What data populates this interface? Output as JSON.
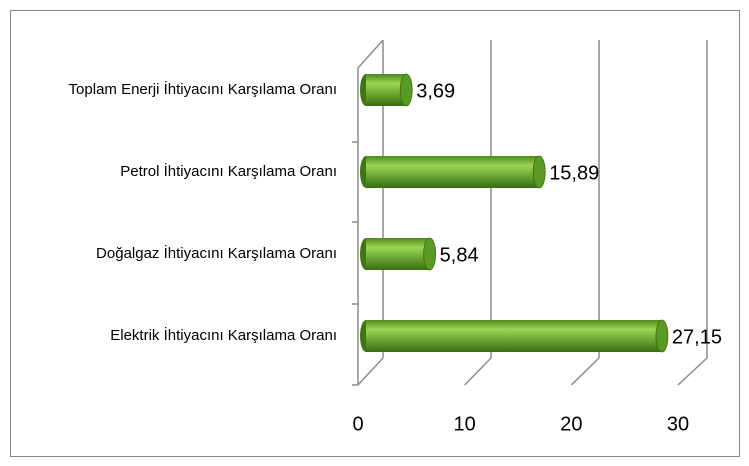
{
  "chart_data": {
    "type": "bar",
    "orientation": "horizontal",
    "categories": [
      "Toplam Enerji İhtiyacını Karşılama Oranı",
      "Petrol İhtiyacını Karşılama Oranı",
      "Doğalgaz İhtiyacını Karşılama Oranı",
      "Elektrik İhtiyacını Karşılama Oranı"
    ],
    "values": [
      3.69,
      15.89,
      5.84,
      27.15
    ],
    "value_labels": [
      "3,69",
      "15,89",
      "5,84",
      "27,15"
    ],
    "color": "#6aa832",
    "xlim": [
      0,
      30
    ],
    "xticks": [
      0,
      10,
      20,
      30
    ],
    "grid": true
  }
}
